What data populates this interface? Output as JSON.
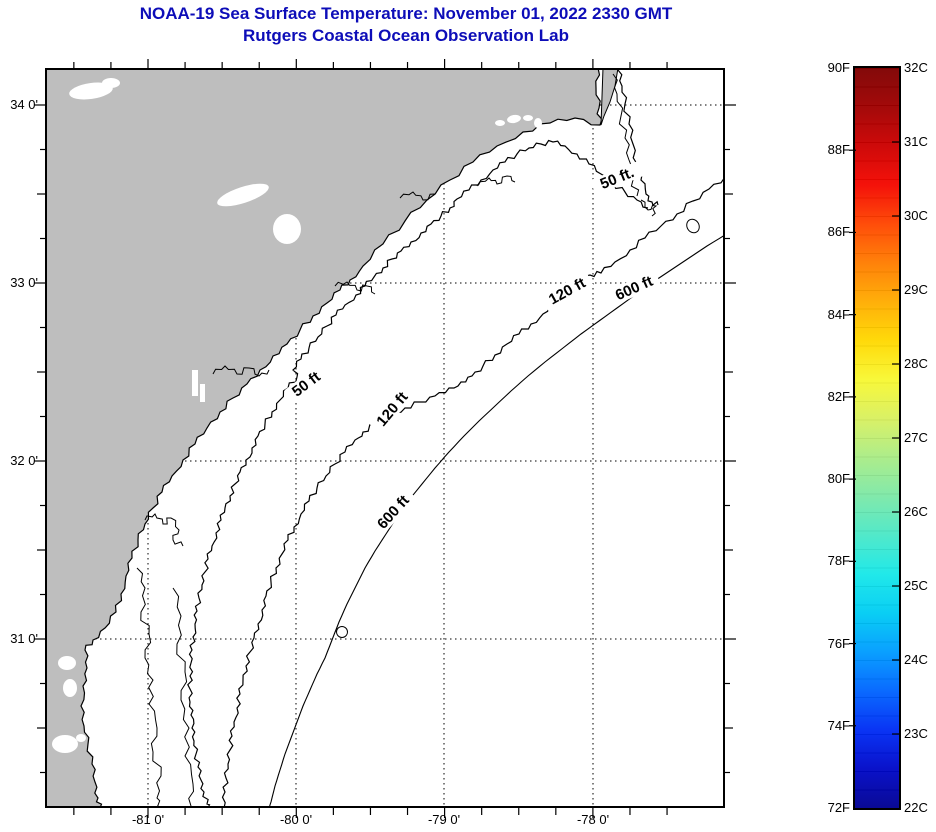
{
  "title": {
    "line1": "NOAA-19 Sea Surface Temperature:  November 01, 2022 2330 GMT",
    "line2": "Rutgers Coastal Ocean Observation Lab",
    "color": "#0D0DB8"
  },
  "map": {
    "y_axis_labels": [
      "34 0'",
      "33 0'",
      "32 0'",
      "31 0'"
    ],
    "x_axis_labels": [
      "-81 0'",
      "-80 0'",
      "-79 0'",
      "-78 0'"
    ],
    "contour_labels": {
      "ne_50": "50 ft.",
      "ne_120": "120 ft",
      "ne_600": "600 ft",
      "sw_50": "50 ft",
      "sw_120": "120 ft",
      "sw_600": "600 ft"
    },
    "land_color": "#BEBEBE",
    "line_color": "#000000"
  },
  "colorbar": {
    "f_labels": [
      "90F",
      "88F",
      "86F",
      "84F",
      "82F",
      "80F",
      "78F",
      "76F",
      "74F",
      "72F"
    ],
    "c_labels": [
      "32C",
      "31C",
      "30C",
      "29C",
      "28C",
      "27C",
      "26C",
      "25C",
      "24C",
      "23C",
      "22C"
    ],
    "gradient_top_to_bottom": [
      "#7E0000",
      "#A00000",
      "#CC0000",
      "#F40800",
      "#FF4600",
      "#FF7C00",
      "#FFAC00",
      "#FFD800",
      "#F8F832",
      "#D8F060",
      "#AAEC86",
      "#7CE8A8",
      "#4AE8C8",
      "#18E8E8",
      "#00CCF4",
      "#009CFF",
      "#0064FF",
      "#002CF4",
      "#0008C8",
      "#000091"
    ]
  }
}
